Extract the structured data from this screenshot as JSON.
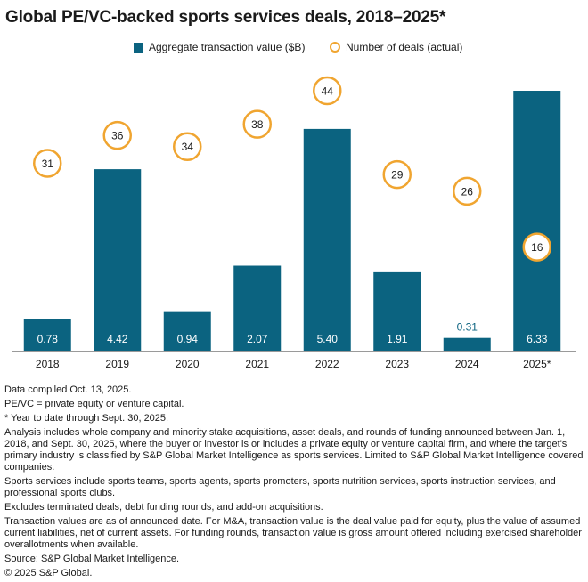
{
  "chart_data": {
    "type": "bar",
    "title": "Global PE/VC-backed sports services deals, 2018–2025*",
    "categories": [
      "2018",
      "2019",
      "2020",
      "2021",
      "2022",
      "2023",
      "2024",
      "2025*"
    ],
    "series": [
      {
        "name": "Aggregate transaction value ($B)",
        "type": "bar",
        "color": "#0b6380",
        "values": [
          0.78,
          4.42,
          0.94,
          2.07,
          5.4,
          1.91,
          0.31,
          6.33
        ],
        "labels": [
          "0.78",
          "4.42",
          "0.94",
          "2.07",
          "5.40",
          "1.91",
          "0.31",
          "6.33"
        ]
      },
      {
        "name": "Number of deals (actual)",
        "type": "marker",
        "color": "#f0a530",
        "values": [
          31,
          36,
          34,
          38,
          44,
          29,
          26,
          16
        ]
      }
    ],
    "ylim_value": [
      0,
      6.33
    ],
    "ylim_deals": [
      0,
      44
    ],
    "xlabel": "",
    "ylabel": "",
    "grid": false,
    "legend": "top-center"
  },
  "notes": [
    "Data compiled Oct. 13, 2025.",
    "PE/VC = private equity or venture capital.",
    "* Year to date through Sept. 30, 2025.",
    "Analysis includes whole company and minority stake acquisitions, asset deals, and rounds of funding announced between Jan. 1, 2018, and Sept. 30, 2025, where the buyer or investor is or includes a private equity or venture capital firm, and where the target's primary industry is classified by S&P Global Market Intelligence as sports services. Limited to S&P Global Market Intelligence covered companies.",
    "Sports services include sports teams, sports agents, sports promoters, sports nutrition services, sports instruction services, and professional sports clubs.",
    "Excludes terminated deals, debt funding rounds, and add-on acquisitions.",
    "Transaction values are as of announced date. For M&A, transaction value is the deal value paid for equity, plus the value of assumed current liabilities, net of current assets. For funding rounds, transaction value is gross amount offered including exercised shareholder overallotments when available.",
    "Source: S&P Global Market Intelligence.",
    "© 2025 S&P Global."
  ]
}
